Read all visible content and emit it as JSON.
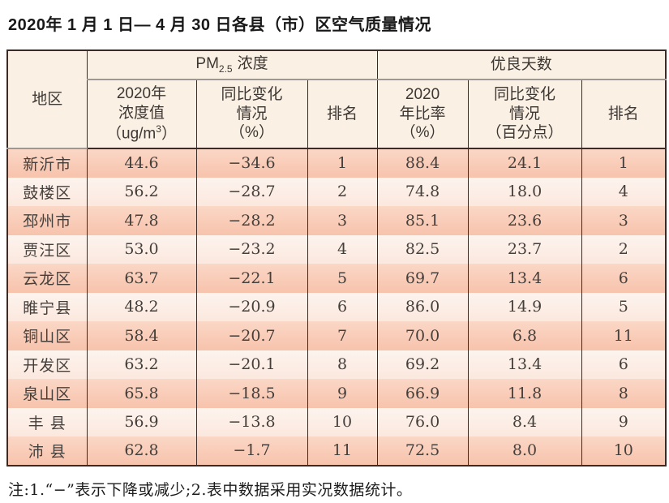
{
  "page": {
    "title": "2020年 1 月 1 日— 4 月 30 日各县（市）区空气质量情况",
    "note": "注:1.“−”表示下降或减少;2.表中数据采用实况数据统计。"
  },
  "colors": {
    "row_salmon": "#f8c9b2",
    "row_light": "#fdf1ea",
    "header_bg": "#fbf0e4",
    "border_dark": "#3b2b26",
    "divider_gray": "#9e9894"
  },
  "table": {
    "region_header": "地区",
    "pm_group": {
      "prefix": "PM",
      "sub": "2.5",
      "suffix": "浓度"
    },
    "good_group": "优良天数",
    "sub_headers": {
      "pm_value": {
        "line1": "2020年",
        "line2": "浓度值",
        "line3_prefix": "（ug/m",
        "line3_sup": "3",
        "line3_suffix": "）"
      },
      "pm_change": {
        "line1": "同比变化",
        "line2": "情况",
        "line3": "（%）"
      },
      "pm_rank": "排名",
      "good_rate": {
        "line1": "2020",
        "line2": "年比率",
        "line3": "（%）"
      },
      "good_change": {
        "line1": "同比变化",
        "line2": "情况",
        "line3": "（百分点）"
      },
      "good_rank": "排名"
    },
    "rows": [
      {
        "region": "新沂市",
        "pm_value": "44.6",
        "pm_change": "−34.6",
        "pm_rank": "1",
        "good_rate": "88.4",
        "good_change": "24.1",
        "good_rank": "1"
      },
      {
        "region": "鼓楼区",
        "pm_value": "56.2",
        "pm_change": "−28.7",
        "pm_rank": "2",
        "good_rate": "74.8",
        "good_change": "18.0",
        "good_rank": "4"
      },
      {
        "region": "邳州市",
        "pm_value": "47.8",
        "pm_change": "−28.2",
        "pm_rank": "3",
        "good_rate": "85.1",
        "good_change": "23.6",
        "good_rank": "3"
      },
      {
        "region": "贾汪区",
        "pm_value": "53.0",
        "pm_change": "−23.2",
        "pm_rank": "4",
        "good_rate": "82.5",
        "good_change": "23.7",
        "good_rank": "2"
      },
      {
        "region": "云龙区",
        "pm_value": "63.7",
        "pm_change": "−22.1",
        "pm_rank": "5",
        "good_rate": "69.7",
        "good_change": "13.4",
        "good_rank": "6"
      },
      {
        "region": "睢宁县",
        "pm_value": "48.2",
        "pm_change": "−20.9",
        "pm_rank": "6",
        "good_rate": "86.0",
        "good_change": "14.9",
        "good_rank": "5"
      },
      {
        "region": "铜山区",
        "pm_value": "58.4",
        "pm_change": "−20.7",
        "pm_rank": "7",
        "good_rate": "70.0",
        "good_change": "6.8",
        "good_rank": "11"
      },
      {
        "region": "开发区",
        "pm_value": "63.2",
        "pm_change": "−20.1",
        "pm_rank": "8",
        "good_rate": "69.2",
        "good_change": "13.4",
        "good_rank": "6"
      },
      {
        "region": "泉山区",
        "pm_value": "65.8",
        "pm_change": "−18.5",
        "pm_rank": "9",
        "good_rate": "66.9",
        "good_change": "11.8",
        "good_rank": "8"
      },
      {
        "region": "丰 县",
        "pm_value": "56.9",
        "pm_change": "−13.8",
        "pm_rank": "10",
        "good_rate": "76.0",
        "good_change": "8.4",
        "good_rank": "9"
      },
      {
        "region": "沛 县",
        "pm_value": "62.8",
        "pm_change": "−1.7",
        "pm_rank": "11",
        "good_rate": "72.5",
        "good_change": "8.0",
        "good_rank": "10"
      }
    ]
  }
}
